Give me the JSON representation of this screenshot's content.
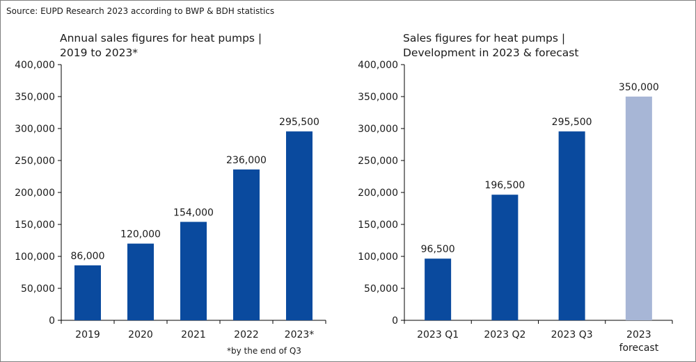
{
  "source": "Source: EUPD Research 2023 according to BWP & BDH statistics",
  "footnote": "*by the end of Q3",
  "chart_data": [
    {
      "type": "bar",
      "title_lines": [
        "Annual sales figures for heat pumps |",
        "2019 to 2023*"
      ],
      "categories": [
        [
          "2019"
        ],
        [
          "2020"
        ],
        [
          "2021"
        ],
        [
          "2022"
        ],
        [
          "2023*"
        ]
      ],
      "values": [
        86000,
        120000,
        154000,
        236000,
        295500
      ],
      "value_labels": [
        "86,000",
        "120,000",
        "154,000",
        "236,000",
        "295,500"
      ],
      "ylim": [
        0,
        400000
      ],
      "yticks": [
        0,
        50000,
        100000,
        150000,
        200000,
        250000,
        300000,
        350000,
        400000
      ],
      "ytick_labels": [
        "0",
        "50,000",
        "100,000",
        "150,000",
        "200,000",
        "250,000",
        "300,000",
        "350,000",
        "400,000"
      ],
      "bar_colors": [
        "#0a4a9e",
        "#0a4a9e",
        "#0a4a9e",
        "#0a4a9e",
        "#0a4a9e"
      ],
      "grid": false
    },
    {
      "type": "bar",
      "title_lines": [
        "Sales figures for heat pumps |",
        "Development in 2023 & forecast"
      ],
      "categories": [
        [
          "2023 Q1"
        ],
        [
          "2023 Q2"
        ],
        [
          "2023 Q3"
        ],
        [
          "2023",
          "forecast"
        ]
      ],
      "values": [
        96500,
        196500,
        295500,
        350000
      ],
      "value_labels": [
        "96,500",
        "196,500",
        "295,500",
        "350,000"
      ],
      "ylim": [
        0,
        400000
      ],
      "yticks": [
        0,
        50000,
        100000,
        150000,
        200000,
        250000,
        300000,
        350000,
        400000
      ],
      "ytick_labels": [
        "0",
        "50,000",
        "100,000",
        "150,000",
        "200,000",
        "250,000",
        "300,000",
        "350,000",
        "400,000"
      ],
      "bar_colors": [
        "#0a4a9e",
        "#0a4a9e",
        "#0a4a9e",
        "#a7b6d6"
      ],
      "grid": false
    }
  ]
}
